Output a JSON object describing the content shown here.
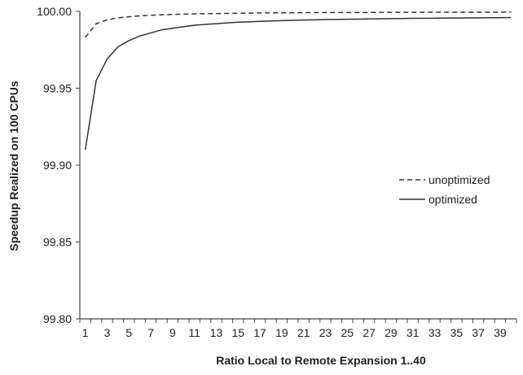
{
  "chart_data": {
    "type": "line",
    "xlabel": "Ratio Local to Remote Expansion 1..40",
    "ylabel": "Speedup Realized on 100 CPUs",
    "ylim": [
      99.8,
      100.0
    ],
    "yticks": [
      "99.80",
      "99.85",
      "99.90",
      "99.95",
      "100.00"
    ],
    "xlim": [
      1,
      40
    ],
    "xticks": [
      "1",
      "3",
      "5",
      "7",
      "9",
      "11",
      "13",
      "15",
      "17",
      "19",
      "21",
      "23",
      "25",
      "27",
      "29",
      "31",
      "33",
      "35",
      "37",
      "39"
    ],
    "grid": false,
    "legend_position": "right",
    "x": [
      1,
      2,
      3,
      4,
      5,
      6,
      7,
      8,
      9,
      10,
      11,
      12,
      13,
      14,
      15,
      16,
      17,
      18,
      19,
      20,
      21,
      22,
      23,
      24,
      25,
      26,
      27,
      28,
      29,
      30,
      31,
      32,
      33,
      34,
      35,
      36,
      37,
      38,
      39,
      40
    ],
    "series": [
      {
        "name": "unoptimized",
        "style": "dashed",
        "color": "#333333",
        "values": [
          99.983,
          99.992,
          99.9945,
          99.9958,
          99.9965,
          99.9971,
          99.9975,
          99.9978,
          99.998,
          99.9982,
          99.9984,
          99.9985,
          99.9986,
          99.9987,
          99.9988,
          99.9989,
          99.999,
          99.999,
          99.9991,
          99.9991,
          99.9992,
          99.9992,
          99.9992,
          99.9993,
          99.9993,
          99.9993,
          99.9993,
          99.9994,
          99.9994,
          99.9994,
          99.9994,
          99.9994,
          99.9995,
          99.9995,
          99.9995,
          99.9995,
          99.9995,
          99.9995,
          99.9995,
          99.9996
        ]
      },
      {
        "name": "optimized",
        "style": "solid",
        "color": "#333333",
        "values": [
          99.91,
          99.955,
          99.969,
          99.977,
          99.981,
          99.984,
          99.986,
          99.988,
          99.989,
          99.99,
          99.991,
          99.9915,
          99.992,
          99.9925,
          99.993,
          99.9932,
          99.9935,
          99.9938,
          99.994,
          99.9942,
          99.9944,
          99.9945,
          99.9947,
          99.9948,
          99.9949,
          99.995,
          99.9951,
          99.9952,
          99.9953,
          99.9954,
          99.9955,
          99.9955,
          99.9956,
          99.9957,
          99.9957,
          99.9958,
          99.9958,
          99.9959,
          99.9959,
          99.996
        ]
      }
    ]
  }
}
